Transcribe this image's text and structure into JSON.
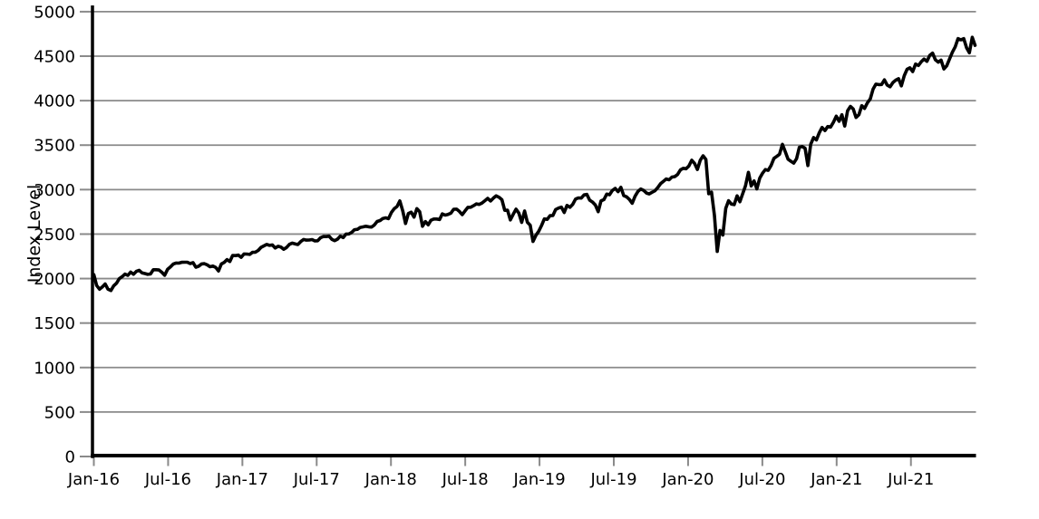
{
  "chart_data": {
    "type": "line",
    "title": "",
    "xlabel": "",
    "ylabel": "Index Level",
    "ylim": [
      0,
      5000
    ],
    "yticks": [
      0,
      500,
      1000,
      1500,
      2000,
      2500,
      3000,
      3500,
      4000,
      4500,
      5000
    ],
    "xtick_labels": [
      "Jan-16",
      "Jul-16",
      "Jan-17",
      "Jul-17",
      "Jan-18",
      "Jul-18",
      "Jan-19",
      "Jul-19",
      "Jan-20",
      "Jul-20",
      "Jan-21",
      "Jul-21"
    ],
    "grid": "horizontal",
    "legend_position": "none",
    "background": "#ffffff",
    "axis_color": "#000000",
    "grid_color": "#8a8a8a",
    "text_color": "#000000",
    "series": [
      {
        "name": "Index Level",
        "color": "#000000",
        "frequency": "weekly",
        "start_label": "Jan-16",
        "end_label": "Dec-21",
        "values": [
          2044,
          1922,
          1880,
          1907,
          1940,
          1880,
          1865,
          1918,
          1948,
          2000,
          2022,
          2050,
          2036,
          2073,
          2048,
          2081,
          2092,
          2065,
          2057,
          2047,
          2052,
          2099,
          2099,
          2096,
          2071,
          2037,
          2103,
          2130,
          2162,
          2175,
          2174,
          2183,
          2184,
          2184,
          2169,
          2180,
          2128,
          2139,
          2165,
          2168,
          2154,
          2133,
          2141,
          2126,
          2085,
          2164,
          2182,
          2213,
          2192,
          2260,
          2258,
          2264,
          2239,
          2277,
          2275,
          2271,
          2295,
          2297,
          2316,
          2351,
          2367,
          2383,
          2373,
          2378,
          2344,
          2363,
          2355,
          2329,
          2349,
          2384,
          2399,
          2391,
          2382,
          2416,
          2439,
          2432,
          2433,
          2438,
          2423,
          2425,
          2459,
          2473,
          2472,
          2477,
          2441,
          2426,
          2443,
          2477,
          2461,
          2500,
          2502,
          2519,
          2549,
          2553,
          2575,
          2581,
          2588,
          2582,
          2579,
          2602,
          2642,
          2652,
          2676,
          2683,
          2674,
          2743,
          2786,
          2810,
          2873,
          2762,
          2620,
          2732,
          2747,
          2691,
          2787,
          2752,
          2588,
          2641,
          2604,
          2656,
          2670,
          2670,
          2663,
          2728,
          2713,
          2721,
          2735,
          2779,
          2780,
          2755,
          2718,
          2760,
          2801,
          2802,
          2819,
          2840,
          2833,
          2850,
          2875,
          2902,
          2872,
          2905,
          2930,
          2914,
          2886,
          2767,
          2768,
          2659,
          2723,
          2781,
          2736,
          2632,
          2760,
          2633,
          2600,
          2417,
          2486,
          2532,
          2596,
          2671,
          2665,
          2707,
          2708,
          2776,
          2793,
          2803,
          2743,
          2822,
          2801,
          2834,
          2893,
          2907,
          2905,
          2940,
          2946,
          2881,
          2860,
          2826,
          2752,
          2873,
          2887,
          2950,
          2942,
          2990,
          3014,
          2977,
          3026,
          2932,
          2919,
          2889,
          2847,
          2926,
          2979,
          3007,
          2992,
          2962,
          2952,
          2970,
          2986,
          3023,
          3067,
          3093,
          3120,
          3110,
          3141,
          3146,
          3169,
          3221,
          3240,
          3235,
          3265,
          3330,
          3295,
          3226,
          3328,
          3380,
          3338,
          2954,
          2972,
          2711,
          2305,
          2541,
          2489,
          2790,
          2875,
          2837,
          2831,
          2930,
          2864,
          2955,
          3044,
          3194,
          3041,
          3098,
          3009,
          3130,
          3185,
          3225,
          3216,
          3271,
          3351,
          3373,
          3397,
          3508,
          3427,
          3341,
          3319,
          3298,
          3348,
          3477,
          3484,
          3465,
          3270,
          3509,
          3585,
          3558,
          3638,
          3699,
          3663,
          3709,
          3703,
          3756,
          3825,
          3768,
          3841,
          3714,
          3887,
          3935,
          3907,
          3811,
          3842,
          3943,
          3913,
          3975,
          4020,
          4129,
          4185,
          4180,
          4181,
          4233,
          4174,
          4156,
          4204,
          4230,
          4247,
          4166,
          4281,
          4352,
          4370,
          4327,
          4412,
          4395,
          4437,
          4468,
          4442,
          4509,
          4535,
          4459,
          4433,
          4455,
          4357,
          4391,
          4471,
          4545,
          4605,
          4698,
          4683,
          4698,
          4595,
          4538,
          4712,
          4621
        ]
      }
    ]
  }
}
